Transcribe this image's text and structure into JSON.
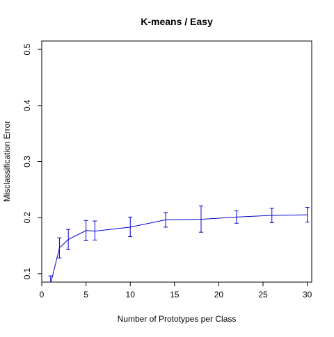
{
  "chart_data": {
    "type": "line",
    "title": "K-means / Easy",
    "xlabel": "Number of Prototypes per Class",
    "ylabel": "Misclassification Error",
    "xlim": [
      0,
      30.5
    ],
    "ylim": [
      0.085,
      0.515
    ],
    "xticks": [
      0,
      5,
      10,
      15,
      20,
      25,
      30
    ],
    "xtick_labels": [
      "0",
      "5",
      "10",
      "15",
      "20",
      "25",
      "30"
    ],
    "yticks": [
      0.1,
      0.2,
      0.3,
      0.4,
      0.5
    ],
    "ytick_labels": [
      "0.1",
      "0.2",
      "0.3",
      "0.4",
      "0.5"
    ],
    "grid": false,
    "series": [
      {
        "color": "#0000cc",
        "x": [
          1,
          2,
          3,
          5,
          6,
          10,
          14,
          18,
          22,
          26,
          30
        ],
        "y": [
          0.082,
          0.146,
          0.161,
          0.177,
          0.176,
          0.183,
          0.196,
          0.197,
          0.201,
          0.204,
          0.205
        ],
        "err_low": [
          0.071,
          0.128,
          0.143,
          0.159,
          0.16,
          0.166,
          0.183,
          0.174,
          0.19,
          0.191,
          0.192
        ],
        "err_high": [
          0.096,
          0.164,
          0.179,
          0.195,
          0.194,
          0.201,
          0.209,
          0.221,
          0.212,
          0.217,
          0.218
        ]
      }
    ]
  }
}
